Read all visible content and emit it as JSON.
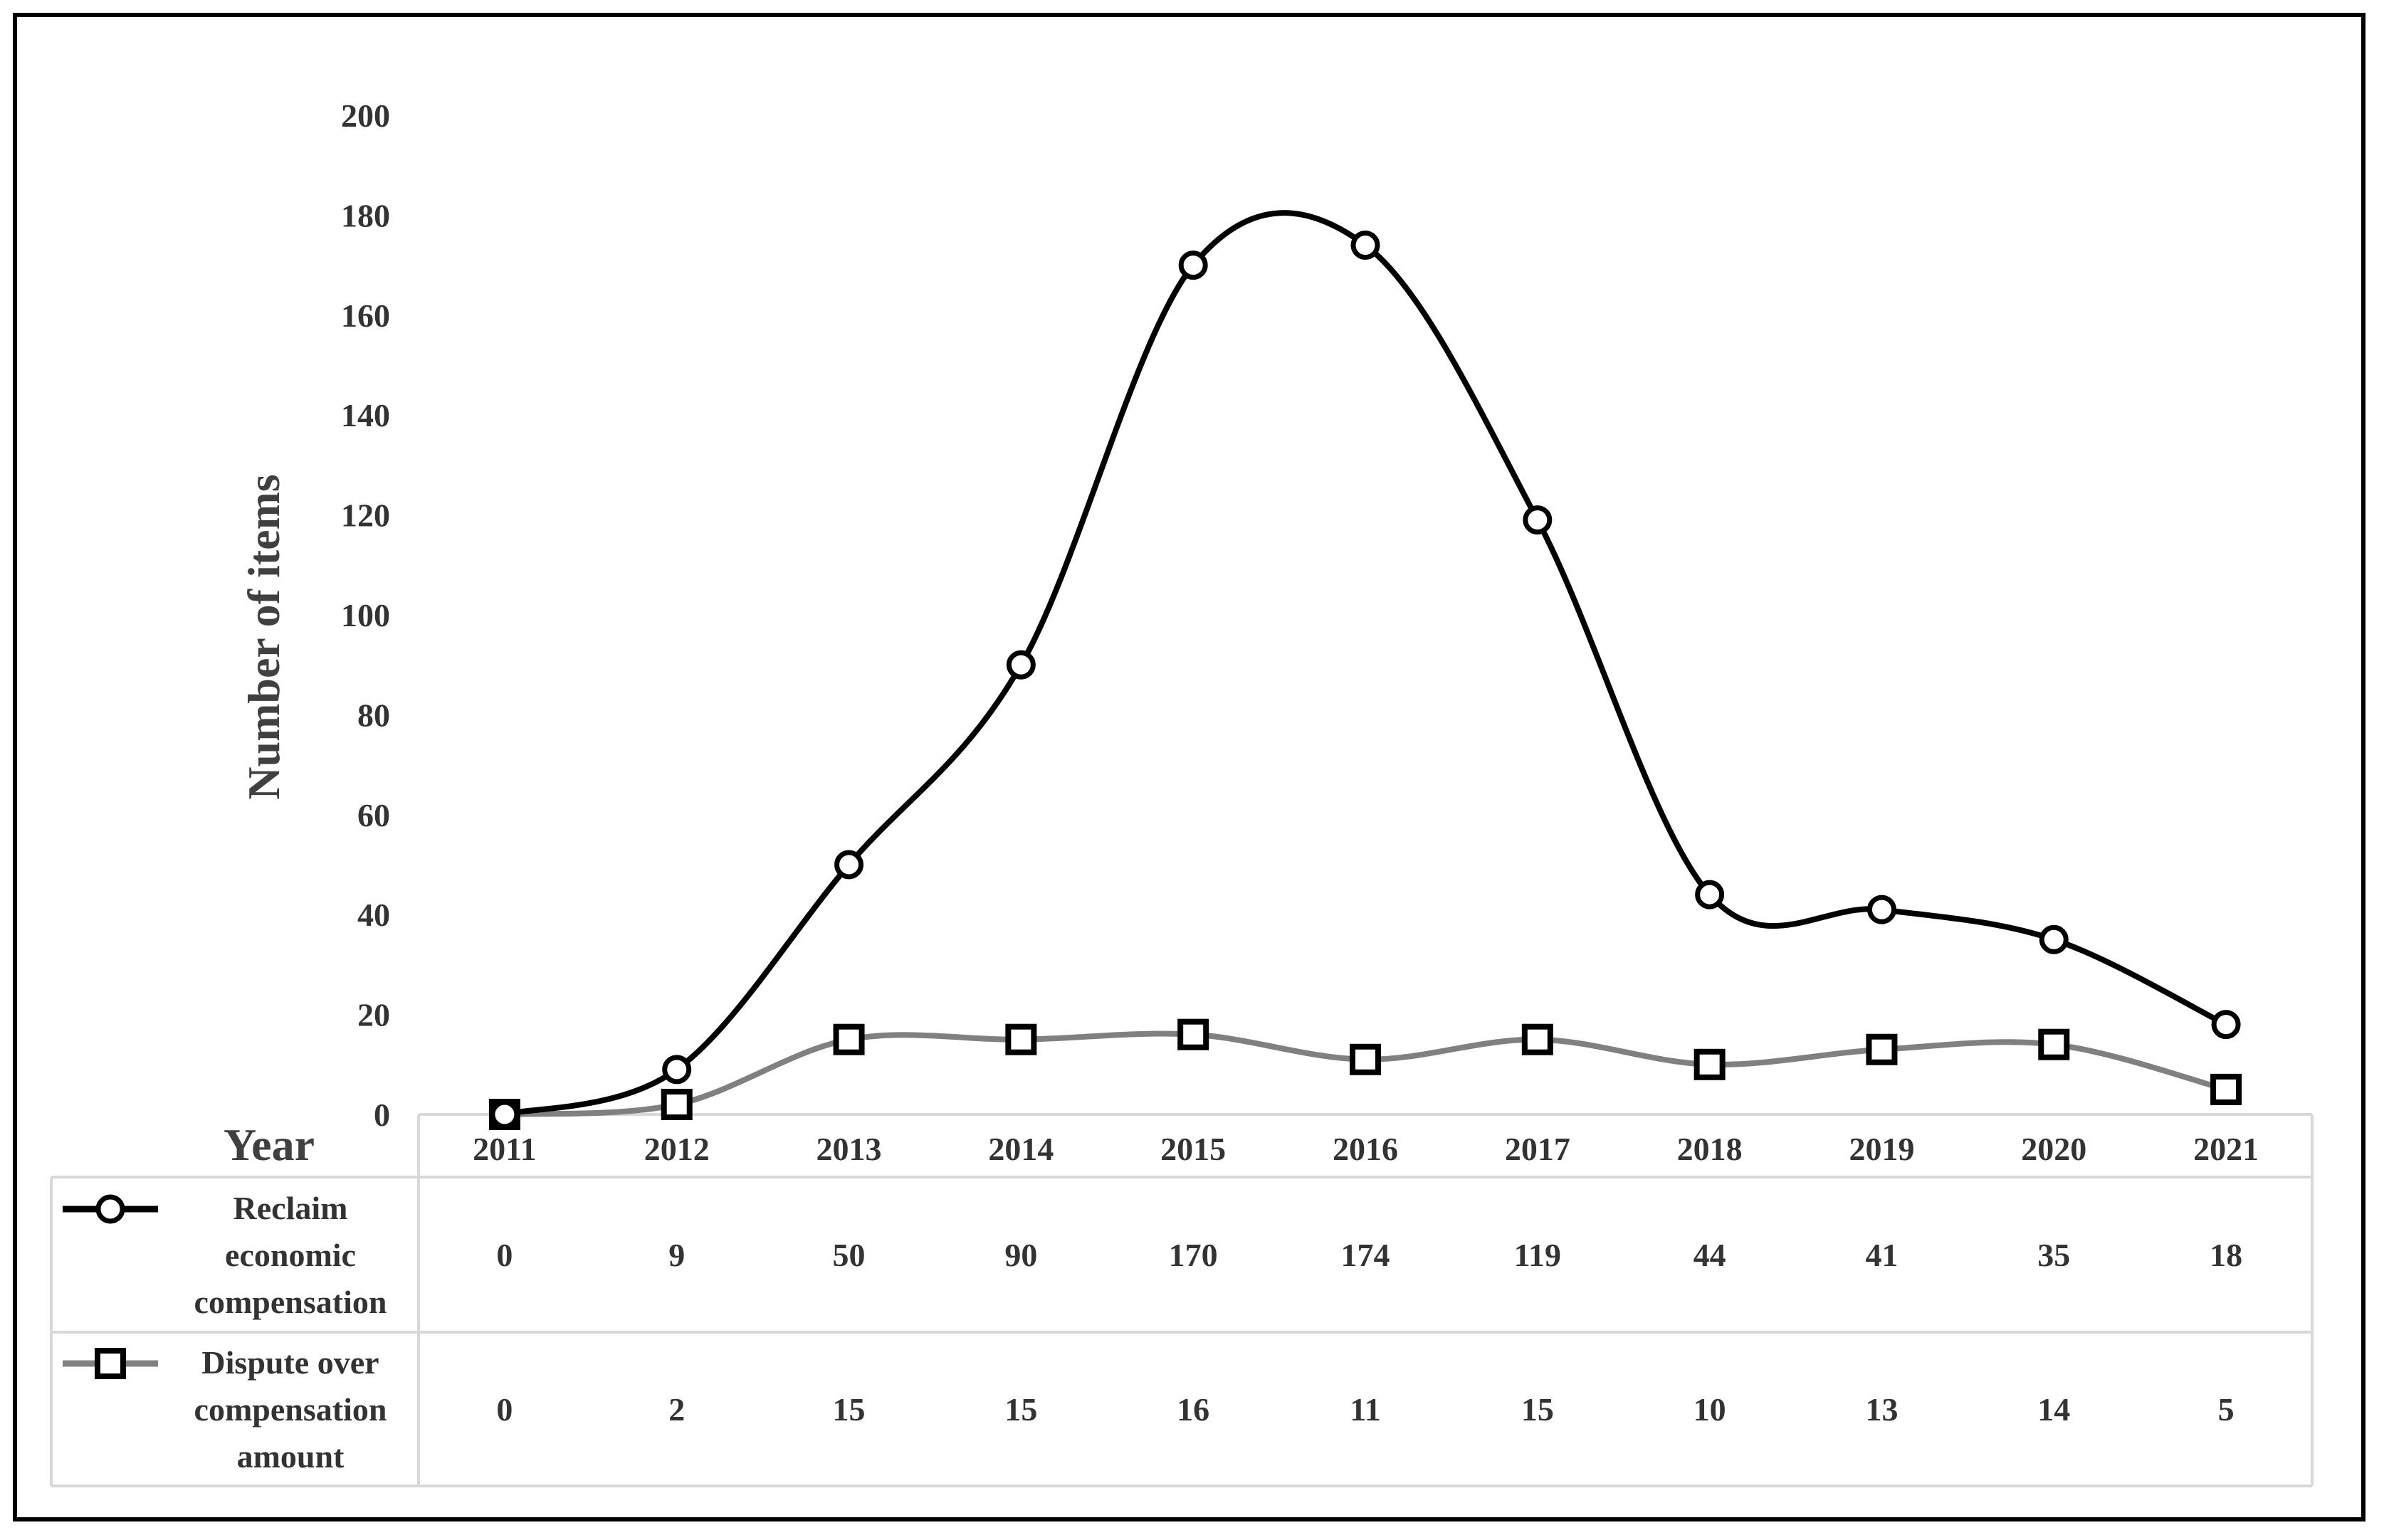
{
  "chart_data": {
    "type": "line",
    "ylabel": "Number of items",
    "xlabel": "Year",
    "ylim": [
      0,
      200
    ],
    "yticks": [
      0,
      20,
      40,
      60,
      80,
      100,
      120,
      140,
      160,
      180,
      200
    ],
    "categories": [
      "2011",
      "2012",
      "2013",
      "2014",
      "2015",
      "2016",
      "2017",
      "2018",
      "2019",
      "2020",
      "2021"
    ],
    "smooth": true,
    "grid": false,
    "legend": "data-table",
    "series": [
      {
        "name_lines": [
          "Reclaim",
          "economic",
          "compensation"
        ],
        "values": [
          0,
          9,
          50,
          90,
          170,
          174,
          119,
          44,
          41,
          35,
          18
        ],
        "color": "#000000",
        "marker": "circle"
      },
      {
        "name_lines": [
          "Dispute over",
          "compensation",
          "amount"
        ],
        "values": [
          0,
          2,
          15,
          15,
          16,
          11,
          15,
          10,
          13,
          14,
          5
        ],
        "color": "#808080",
        "marker": "square"
      }
    ]
  }
}
